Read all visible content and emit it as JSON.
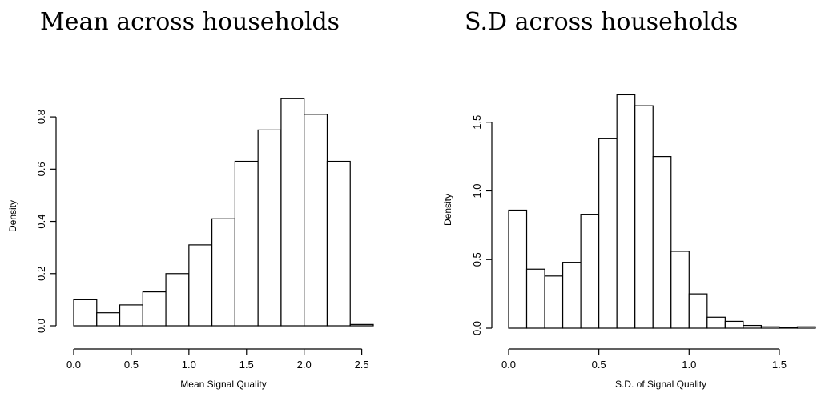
{
  "chart_data": [
    {
      "type": "bar",
      "title": "Mean across households",
      "xlabel": "Mean Signal Quality",
      "ylabel": "Density",
      "xlim": [
        0.0,
        2.6
      ],
      "ylim": [
        0.0,
        0.88
      ],
      "bin_width": 0.2,
      "bins": [
        {
          "x0": 0.0,
          "x1": 0.2,
          "density": 0.1
        },
        {
          "x0": 0.2,
          "x1": 0.4,
          "density": 0.05
        },
        {
          "x0": 0.4,
          "x1": 0.6,
          "density": 0.08
        },
        {
          "x0": 0.6,
          "x1": 0.8,
          "density": 0.13
        },
        {
          "x0": 0.8,
          "x1": 1.0,
          "density": 0.2
        },
        {
          "x0": 1.0,
          "x1": 1.2,
          "density": 0.31
        },
        {
          "x0": 1.2,
          "x1": 1.4,
          "density": 0.41
        },
        {
          "x0": 1.4,
          "x1": 1.6,
          "density": 0.63
        },
        {
          "x0": 1.6,
          "x1": 1.8,
          "density": 0.75
        },
        {
          "x0": 1.8,
          "x1": 2.0,
          "density": 0.87
        },
        {
          "x0": 2.0,
          "x1": 2.2,
          "density": 0.81
        },
        {
          "x0": 2.2,
          "x1": 2.4,
          "density": 0.63
        },
        {
          "x0": 2.4,
          "x1": 2.6,
          "density": 0.005
        }
      ],
      "x_ticks": [
        0.0,
        0.5,
        1.0,
        1.5,
        2.0,
        2.5
      ],
      "x_tick_labels": [
        "0.0",
        "0.5",
        "1.0",
        "1.5",
        "2.0",
        "2.5"
      ],
      "y_ticks": [
        0.0,
        0.2,
        0.4,
        0.6,
        0.8
      ],
      "y_tick_labels": [
        "0.0",
        "0.2",
        "0.4",
        "0.6",
        "0.8"
      ]
    },
    {
      "type": "bar",
      "title": "S.D across households",
      "xlabel": "S.D. of Signal Quality",
      "ylabel": "Density",
      "xlim": [
        0.0,
        1.7
      ],
      "ylim": [
        0.0,
        1.72
      ],
      "bin_width": 0.1,
      "bins": [
        {
          "x0": 0.0,
          "x1": 0.1,
          "density": 0.86
        },
        {
          "x0": 0.1,
          "x1": 0.2,
          "density": 0.43
        },
        {
          "x0": 0.2,
          "x1": 0.3,
          "density": 0.38
        },
        {
          "x0": 0.3,
          "x1": 0.4,
          "density": 0.48
        },
        {
          "x0": 0.4,
          "x1": 0.5,
          "density": 0.83
        },
        {
          "x0": 0.5,
          "x1": 0.6,
          "density": 1.38
        },
        {
          "x0": 0.6,
          "x1": 0.7,
          "density": 1.7
        },
        {
          "x0": 0.7,
          "x1": 0.8,
          "density": 1.62
        },
        {
          "x0": 0.8,
          "x1": 0.9,
          "density": 1.25
        },
        {
          "x0": 0.9,
          "x1": 1.0,
          "density": 0.56
        },
        {
          "x0": 1.0,
          "x1": 1.1,
          "density": 0.25
        },
        {
          "x0": 1.1,
          "x1": 1.2,
          "density": 0.08
        },
        {
          "x0": 1.2,
          "x1": 1.3,
          "density": 0.05
        },
        {
          "x0": 1.3,
          "x1": 1.4,
          "density": 0.02
        },
        {
          "x0": 1.4,
          "x1": 1.5,
          "density": 0.01
        },
        {
          "x0": 1.5,
          "x1": 1.6,
          "density": 0.005
        },
        {
          "x0": 1.6,
          "x1": 1.7,
          "density": 0.01
        }
      ],
      "x_ticks": [
        0.0,
        0.5,
        1.0,
        1.5
      ],
      "x_tick_labels": [
        "0.0",
        "0.5",
        "1.0",
        "1.5"
      ],
      "y_ticks": [
        0.0,
        0.5,
        1.0,
        1.5
      ],
      "y_tick_labels": [
        "0.0",
        "0.5",
        "1.0",
        "1.5"
      ]
    }
  ]
}
